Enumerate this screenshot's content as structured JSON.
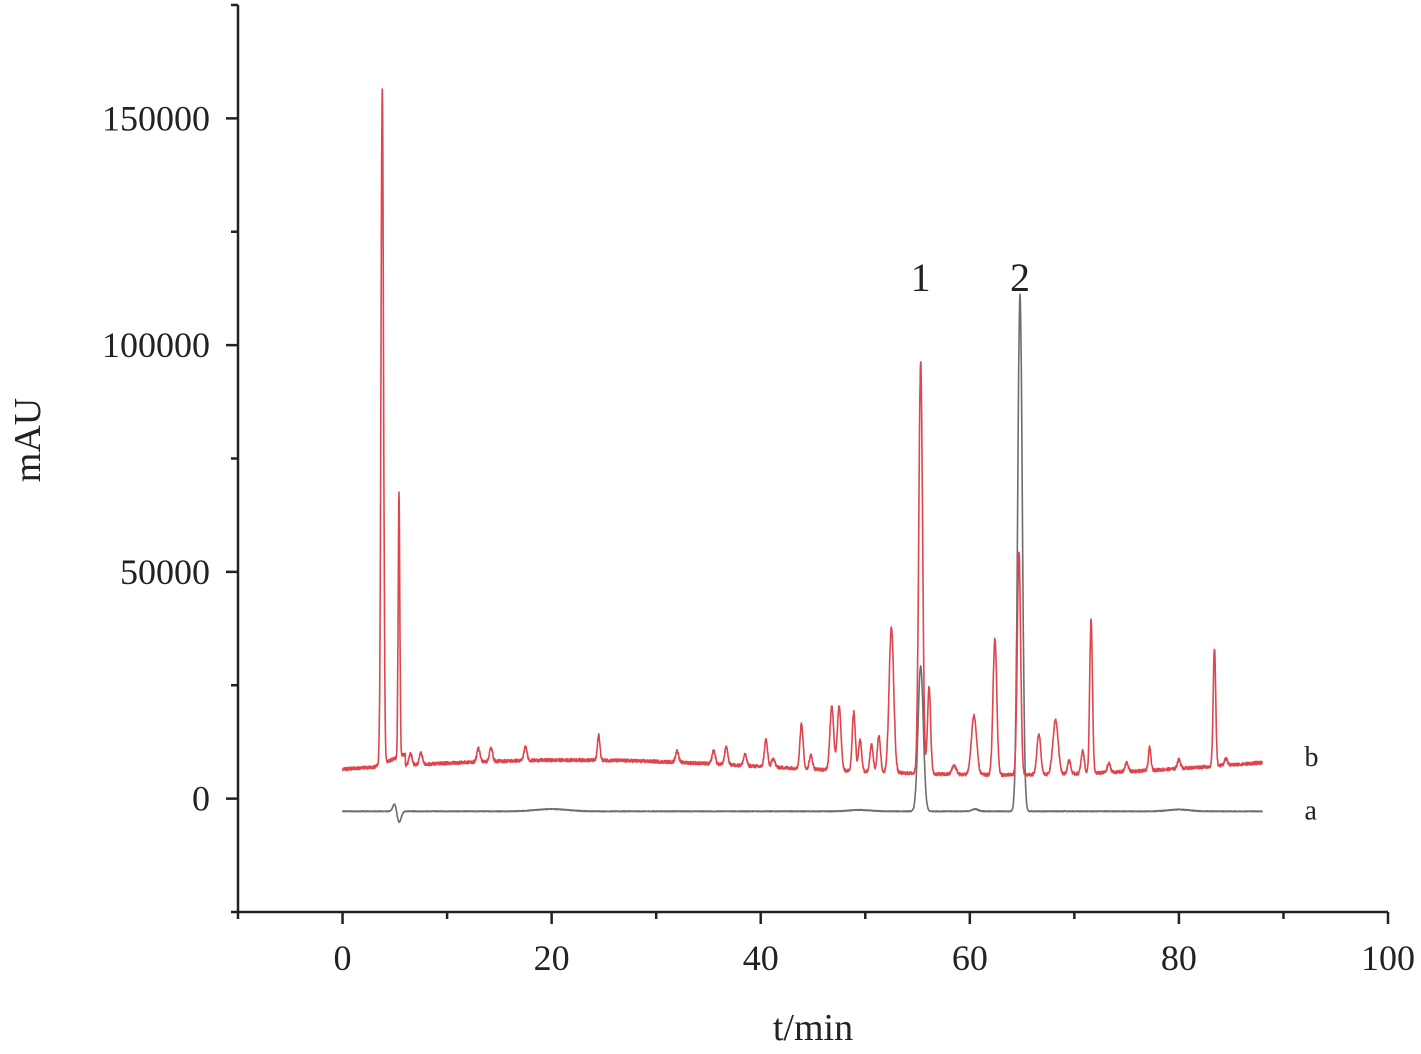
{
  "chart_data": {
    "type": "line",
    "title": "",
    "xlabel": "t/min",
    "ylabel": "mAU",
    "xlim": [
      -10,
      100
    ],
    "ylim": [
      -25000,
      175000
    ],
    "x_ticks": [
      0,
      20,
      40,
      60,
      80,
      100
    ],
    "x_tick_labels": [
      "0",
      "20",
      "40",
      "60",
      "80",
      "100"
    ],
    "y_ticks": [
      0,
      50000,
      100000,
      150000
    ],
    "y_tick_labels": [
      "0",
      "50000",
      "100000",
      "150000"
    ],
    "grid": false,
    "legend": "none",
    "series": [
      {
        "name": "a",
        "color": "#6e6e6e",
        "baseline": -2800,
        "x_range": [
          0,
          88
        ],
        "peaks": [
          {
            "x": 5.0,
            "y": 1800,
            "w": 0.18
          },
          {
            "x": 5.4,
            "y": -2500,
            "w": 0.2
          },
          {
            "x": 20.0,
            "y": 500,
            "w": 1.5
          },
          {
            "x": 49.5,
            "y": 300,
            "w": 1.0
          },
          {
            "x": 55.3,
            "y": 32000,
            "w": 0.25
          },
          {
            "x": 60.5,
            "y": 500,
            "w": 0.3
          },
          {
            "x": 64.8,
            "y": 114000,
            "w": 0.22
          },
          {
            "x": 80.0,
            "y": 400,
            "w": 1.0
          }
        ]
      },
      {
        "name": "b",
        "color": "#e0454e",
        "baseline": 6500,
        "x_range": [
          0,
          88
        ],
        "peaks": [
          {
            "x": 3.8,
            "y": 149000,
            "w": 0.12
          },
          {
            "x": 5.4,
            "y": 58000,
            "w": 0.08
          },
          {
            "x": 6.5,
            "y": 2500,
            "w": 0.15
          },
          {
            "x": 7.5,
            "y": 2500,
            "w": 0.15
          },
          {
            "x": 13.0,
            "y": 3000,
            "w": 0.15
          },
          {
            "x": 14.2,
            "y": 3000,
            "w": 0.15
          },
          {
            "x": 17.5,
            "y": 3000,
            "w": 0.15
          },
          {
            "x": 24.5,
            "y": 5500,
            "w": 0.12
          },
          {
            "x": 32.0,
            "y": 2500,
            "w": 0.15
          },
          {
            "x": 35.5,
            "y": 3000,
            "w": 0.15
          },
          {
            "x": 36.7,
            "y": 4000,
            "w": 0.15
          },
          {
            "x": 38.5,
            "y": 2500,
            "w": 0.15
          },
          {
            "x": 40.5,
            "y": 6000,
            "w": 0.15
          },
          {
            "x": 41.2,
            "y": 2000,
            "w": 0.15
          },
          {
            "x": 43.9,
            "y": 10000,
            "w": 0.15
          },
          {
            "x": 44.8,
            "y": 3000,
            "w": 0.15
          },
          {
            "x": 46.8,
            "y": 14000,
            "w": 0.18
          },
          {
            "x": 47.5,
            "y": 14000,
            "w": 0.18
          },
          {
            "x": 48.9,
            "y": 13000,
            "w": 0.15
          },
          {
            "x": 49.5,
            "y": 7000,
            "w": 0.15
          },
          {
            "x": 50.6,
            "y": 6000,
            "w": 0.15
          },
          {
            "x": 51.3,
            "y": 8000,
            "w": 0.15
          },
          {
            "x": 52.5,
            "y": 32000,
            "w": 0.22
          },
          {
            "x": 55.3,
            "y": 91000,
            "w": 0.18
          },
          {
            "x": 56.1,
            "y": 19000,
            "w": 0.15
          },
          {
            "x": 58.5,
            "y": 2000,
            "w": 0.2
          },
          {
            "x": 60.4,
            "y": 13000,
            "w": 0.25
          },
          {
            "x": 62.4,
            "y": 30000,
            "w": 0.18
          },
          {
            "x": 64.7,
            "y": 49000,
            "w": 0.16
          },
          {
            "x": 66.6,
            "y": 9000,
            "w": 0.18
          },
          {
            "x": 68.2,
            "y": 12000,
            "w": 0.25
          },
          {
            "x": 69.5,
            "y": 3000,
            "w": 0.15
          },
          {
            "x": 70.8,
            "y": 5000,
            "w": 0.15
          },
          {
            "x": 71.6,
            "y": 34000,
            "w": 0.13
          },
          {
            "x": 73.3,
            "y": 2000,
            "w": 0.15
          },
          {
            "x": 75.0,
            "y": 2000,
            "w": 0.15
          },
          {
            "x": 77.2,
            "y": 5000,
            "w": 0.12
          },
          {
            "x": 80.0,
            "y": 2000,
            "w": 0.15
          },
          {
            "x": 83.4,
            "y": 26000,
            "w": 0.12
          },
          {
            "x": 84.5,
            "y": 1500,
            "w": 0.15
          }
        ]
      }
    ],
    "annotations": [
      {
        "text": "1",
        "x": 55.3,
        "y": 115000
      },
      {
        "text": "2",
        "x": 64.8,
        "y": 115000
      }
    ]
  }
}
